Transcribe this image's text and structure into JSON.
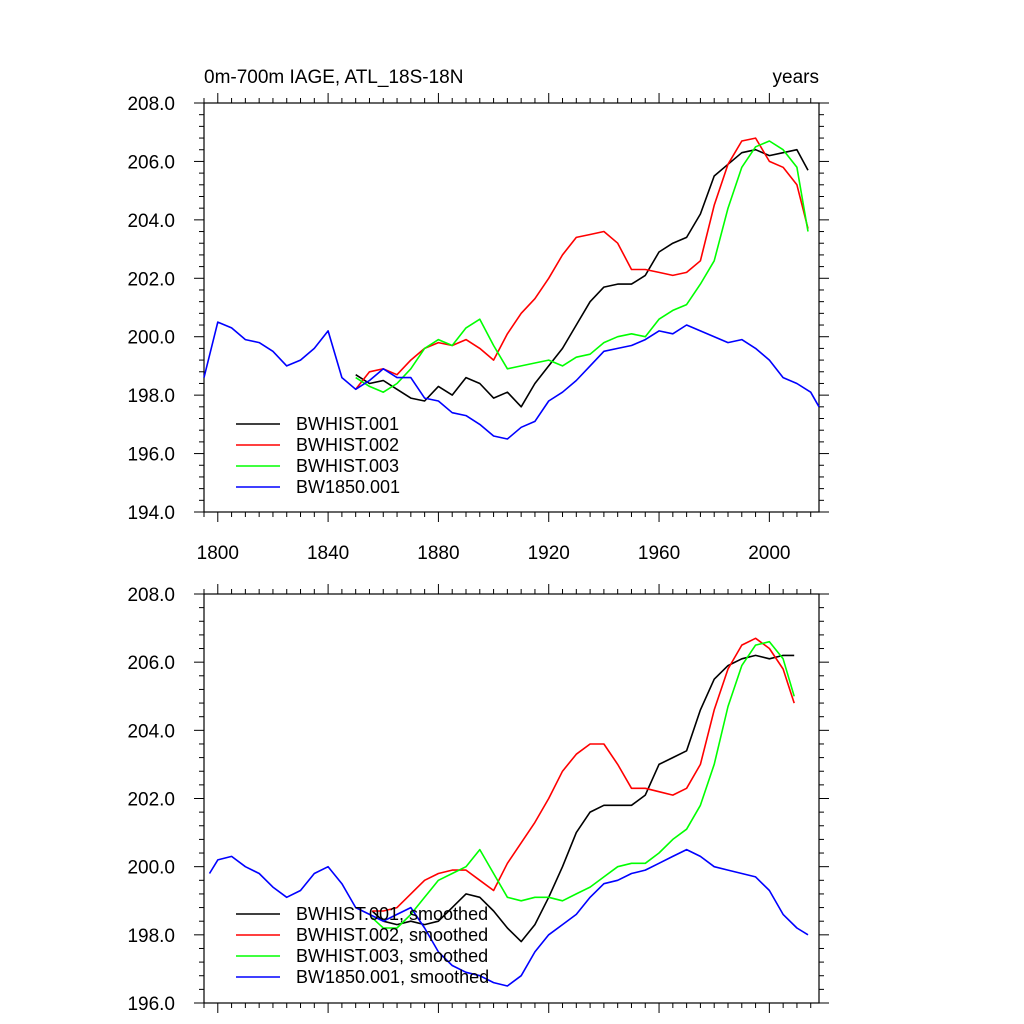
{
  "chart_data": [
    {
      "type": "line",
      "title_left": "0m-700m IAGE, ATL_18S-18N",
      "title_right": "years",
      "xlim": [
        1795,
        2018
      ],
      "ylim": [
        194,
        208
      ],
      "xticks": [
        1800,
        1840,
        1880,
        1920,
        1960,
        2000
      ],
      "xtick_labels": [
        "1800",
        "1840",
        "1880",
        "1920",
        "1960",
        "2000"
      ],
      "yticks": [
        194,
        196,
        198,
        200,
        202,
        204,
        206,
        208
      ],
      "ytick_labels": [
        "194.0",
        "196.0",
        "198.0",
        "200.0",
        "202.0",
        "204.0",
        "206.0",
        "208.0"
      ],
      "legend_position": "bottom-left",
      "series": [
        {
          "name": "BWHIST.001",
          "color": "#000000",
          "x": [
            1850,
            1855,
            1860,
            1865,
            1870,
            1875,
            1880,
            1885,
            1890,
            1895,
            1900,
            1905,
            1910,
            1915,
            1920,
            1925,
            1930,
            1935,
            1940,
            1945,
            1950,
            1955,
            1960,
            1965,
            1970,
            1975,
            1980,
            1985,
            1990,
            1995,
            2000,
            2005,
            2010,
            2014
          ],
          "y": [
            198.7,
            198.4,
            198.5,
            198.2,
            197.9,
            197.8,
            198.3,
            198.0,
            198.6,
            198.4,
            197.9,
            198.1,
            197.6,
            198.4,
            199.0,
            199.6,
            200.4,
            201.2,
            201.7,
            201.8,
            201.8,
            202.1,
            202.9,
            203.2,
            203.4,
            204.2,
            205.5,
            205.9,
            206.3,
            206.4,
            206.2,
            206.3,
            206.4,
            205.7
          ]
        },
        {
          "name": "BWHIST.002",
          "color": "#ff0000",
          "x": [
            1850,
            1855,
            1860,
            1865,
            1870,
            1875,
            1880,
            1885,
            1890,
            1895,
            1900,
            1905,
            1910,
            1915,
            1920,
            1925,
            1930,
            1935,
            1940,
            1945,
            1950,
            1955,
            1960,
            1965,
            1970,
            1975,
            1980,
            1985,
            1990,
            1995,
            2000,
            2005,
            2010,
            2014
          ],
          "y": [
            198.2,
            198.8,
            198.9,
            198.7,
            199.2,
            199.6,
            199.8,
            199.7,
            199.9,
            199.6,
            199.2,
            200.1,
            200.8,
            201.3,
            202.0,
            202.8,
            203.4,
            203.5,
            203.6,
            203.2,
            202.3,
            202.3,
            202.2,
            202.1,
            202.2,
            202.6,
            204.5,
            205.9,
            206.7,
            206.8,
            206.0,
            205.8,
            205.2,
            203.7
          ]
        },
        {
          "name": "BWHIST.003",
          "color": "#00ff00",
          "x": [
            1850,
            1855,
            1860,
            1865,
            1870,
            1875,
            1880,
            1885,
            1890,
            1895,
            1900,
            1905,
            1910,
            1915,
            1920,
            1925,
            1930,
            1935,
            1940,
            1945,
            1950,
            1955,
            1960,
            1965,
            1970,
            1975,
            1980,
            1985,
            1990,
            1995,
            2000,
            2005,
            2010,
            2014
          ],
          "y": [
            198.6,
            198.3,
            198.1,
            198.4,
            198.9,
            199.6,
            199.9,
            199.7,
            200.3,
            200.6,
            199.7,
            198.9,
            199.0,
            199.1,
            199.2,
            199.0,
            199.3,
            199.4,
            199.8,
            200.0,
            200.1,
            200.0,
            200.6,
            200.9,
            201.1,
            201.8,
            202.6,
            204.4,
            205.8,
            206.5,
            206.7,
            206.4,
            205.8,
            203.6
          ]
        },
        {
          "name": "BW1850.001",
          "color": "#0000ff",
          "x": [
            1795,
            1800,
            1805,
            1810,
            1815,
            1820,
            1825,
            1830,
            1835,
            1840,
            1845,
            1850,
            1855,
            1860,
            1865,
            1870,
            1875,
            1880,
            1885,
            1890,
            1895,
            1900,
            1905,
            1910,
            1915,
            1920,
            1925,
            1930,
            1935,
            1940,
            1945,
            1950,
            1955,
            1960,
            1965,
            1970,
            1975,
            1980,
            1985,
            1990,
            1995,
            2000,
            2005,
            2010,
            2015,
            2018
          ],
          "y": [
            198.6,
            200.5,
            200.3,
            199.9,
            199.8,
            199.5,
            199.0,
            199.2,
            199.6,
            200.2,
            198.6,
            198.2,
            198.5,
            198.9,
            198.6,
            198.6,
            197.9,
            197.8,
            197.4,
            197.3,
            197.0,
            196.6,
            196.5,
            196.9,
            197.1,
            197.8,
            198.1,
            198.5,
            199.0,
            199.5,
            199.6,
            199.7,
            199.9,
            200.2,
            200.1,
            200.4,
            200.2,
            200.0,
            199.8,
            199.9,
            199.6,
            199.2,
            198.6,
            198.4,
            198.1,
            197.6
          ]
        }
      ]
    },
    {
      "type": "line",
      "xlim": [
        1795,
        2018
      ],
      "ylim": [
        196,
        208
      ],
      "xticks": [
        1800,
        1840,
        1880,
        1920,
        1960,
        2000
      ],
      "yticks": [
        196,
        198,
        200,
        202,
        204,
        206,
        208
      ],
      "ytick_labels": [
        "196.0",
        "198.0",
        "200.0",
        "202.0",
        "204.0",
        "206.0",
        "208.0"
      ],
      "legend_position": "bottom-left",
      "series": [
        {
          "name": "BWHIST.001, smoothed",
          "color": "#000000",
          "x": [
            1856,
            1860,
            1865,
            1870,
            1875,
            1880,
            1885,
            1890,
            1895,
            1900,
            1905,
            1910,
            1915,
            1920,
            1925,
            1930,
            1935,
            1940,
            1945,
            1950,
            1955,
            1960,
            1965,
            1970,
            1975,
            1980,
            1985,
            1990,
            1995,
            2000,
            2005,
            2009
          ],
          "y": [
            198.7,
            198.4,
            198.3,
            198.4,
            198.3,
            198.4,
            198.8,
            199.2,
            199.1,
            198.7,
            198.2,
            197.8,
            198.3,
            199.1,
            200.0,
            201.0,
            201.6,
            201.8,
            201.8,
            201.8,
            202.1,
            203.0,
            203.2,
            203.4,
            204.6,
            205.5,
            205.9,
            206.1,
            206.2,
            206.1,
            206.2,
            206.2
          ]
        },
        {
          "name": "BWHIST.002, smoothed",
          "color": "#ff0000",
          "x": [
            1856,
            1860,
            1865,
            1870,
            1875,
            1880,
            1885,
            1890,
            1895,
            1900,
            1905,
            1910,
            1915,
            1920,
            1925,
            1930,
            1935,
            1940,
            1945,
            1950,
            1955,
            1960,
            1965,
            1970,
            1975,
            1980,
            1985,
            1990,
            1995,
            2000,
            2005,
            2009
          ],
          "y": [
            198.7,
            198.7,
            198.8,
            199.2,
            199.6,
            199.8,
            199.9,
            199.9,
            199.6,
            199.3,
            200.1,
            200.7,
            201.3,
            202.0,
            202.8,
            203.3,
            203.6,
            203.6,
            203.0,
            202.3,
            202.3,
            202.2,
            202.1,
            202.3,
            203.0,
            204.6,
            205.8,
            206.5,
            206.7,
            206.4,
            205.8,
            204.8
          ]
        },
        {
          "name": "BWHIST.003, smoothed",
          "color": "#00ff00",
          "x": [
            1856,
            1860,
            1865,
            1870,
            1875,
            1880,
            1885,
            1890,
            1895,
            1900,
            1905,
            1910,
            1915,
            1920,
            1925,
            1930,
            1935,
            1940,
            1945,
            1950,
            1955,
            1960,
            1965,
            1970,
            1975,
            1980,
            1985,
            1990,
            1995,
            2000,
            2005,
            2009
          ],
          "y": [
            198.5,
            198.2,
            198.2,
            198.6,
            199.1,
            199.6,
            199.8,
            200.0,
            200.5,
            199.8,
            199.1,
            199.0,
            199.1,
            199.1,
            199.0,
            199.2,
            199.4,
            199.7,
            200.0,
            200.1,
            200.1,
            200.4,
            200.8,
            201.1,
            201.8,
            203.0,
            204.7,
            205.9,
            206.5,
            206.6,
            206.1,
            205.0
          ]
        },
        {
          "name": "BW1850.001, smoothed",
          "color": "#0000ff",
          "x": [
            1797,
            1800,
            1805,
            1810,
            1815,
            1820,
            1825,
            1830,
            1835,
            1840,
            1845,
            1850,
            1855,
            1860,
            1865,
            1870,
            1875,
            1880,
            1885,
            1890,
            1895,
            1900,
            1905,
            1910,
            1915,
            1920,
            1925,
            1930,
            1935,
            1940,
            1945,
            1950,
            1955,
            1960,
            1965,
            1970,
            1975,
            1980,
            1985,
            1990,
            1995,
            2000,
            2005,
            2010,
            2014
          ],
          "y": [
            199.8,
            200.2,
            200.3,
            200.0,
            199.8,
            199.4,
            199.1,
            199.3,
            199.8,
            200.0,
            199.5,
            198.8,
            198.6,
            198.4,
            198.6,
            198.8,
            198.2,
            197.5,
            197.1,
            196.9,
            196.8,
            196.6,
            196.5,
            196.8,
            197.5,
            198.0,
            198.3,
            198.6,
            199.1,
            199.5,
            199.6,
            199.8,
            199.9,
            200.1,
            200.3,
            200.5,
            200.3,
            200.0,
            199.9,
            199.8,
            199.7,
            199.3,
            198.6,
            198.2,
            198.0
          ]
        }
      ]
    }
  ]
}
